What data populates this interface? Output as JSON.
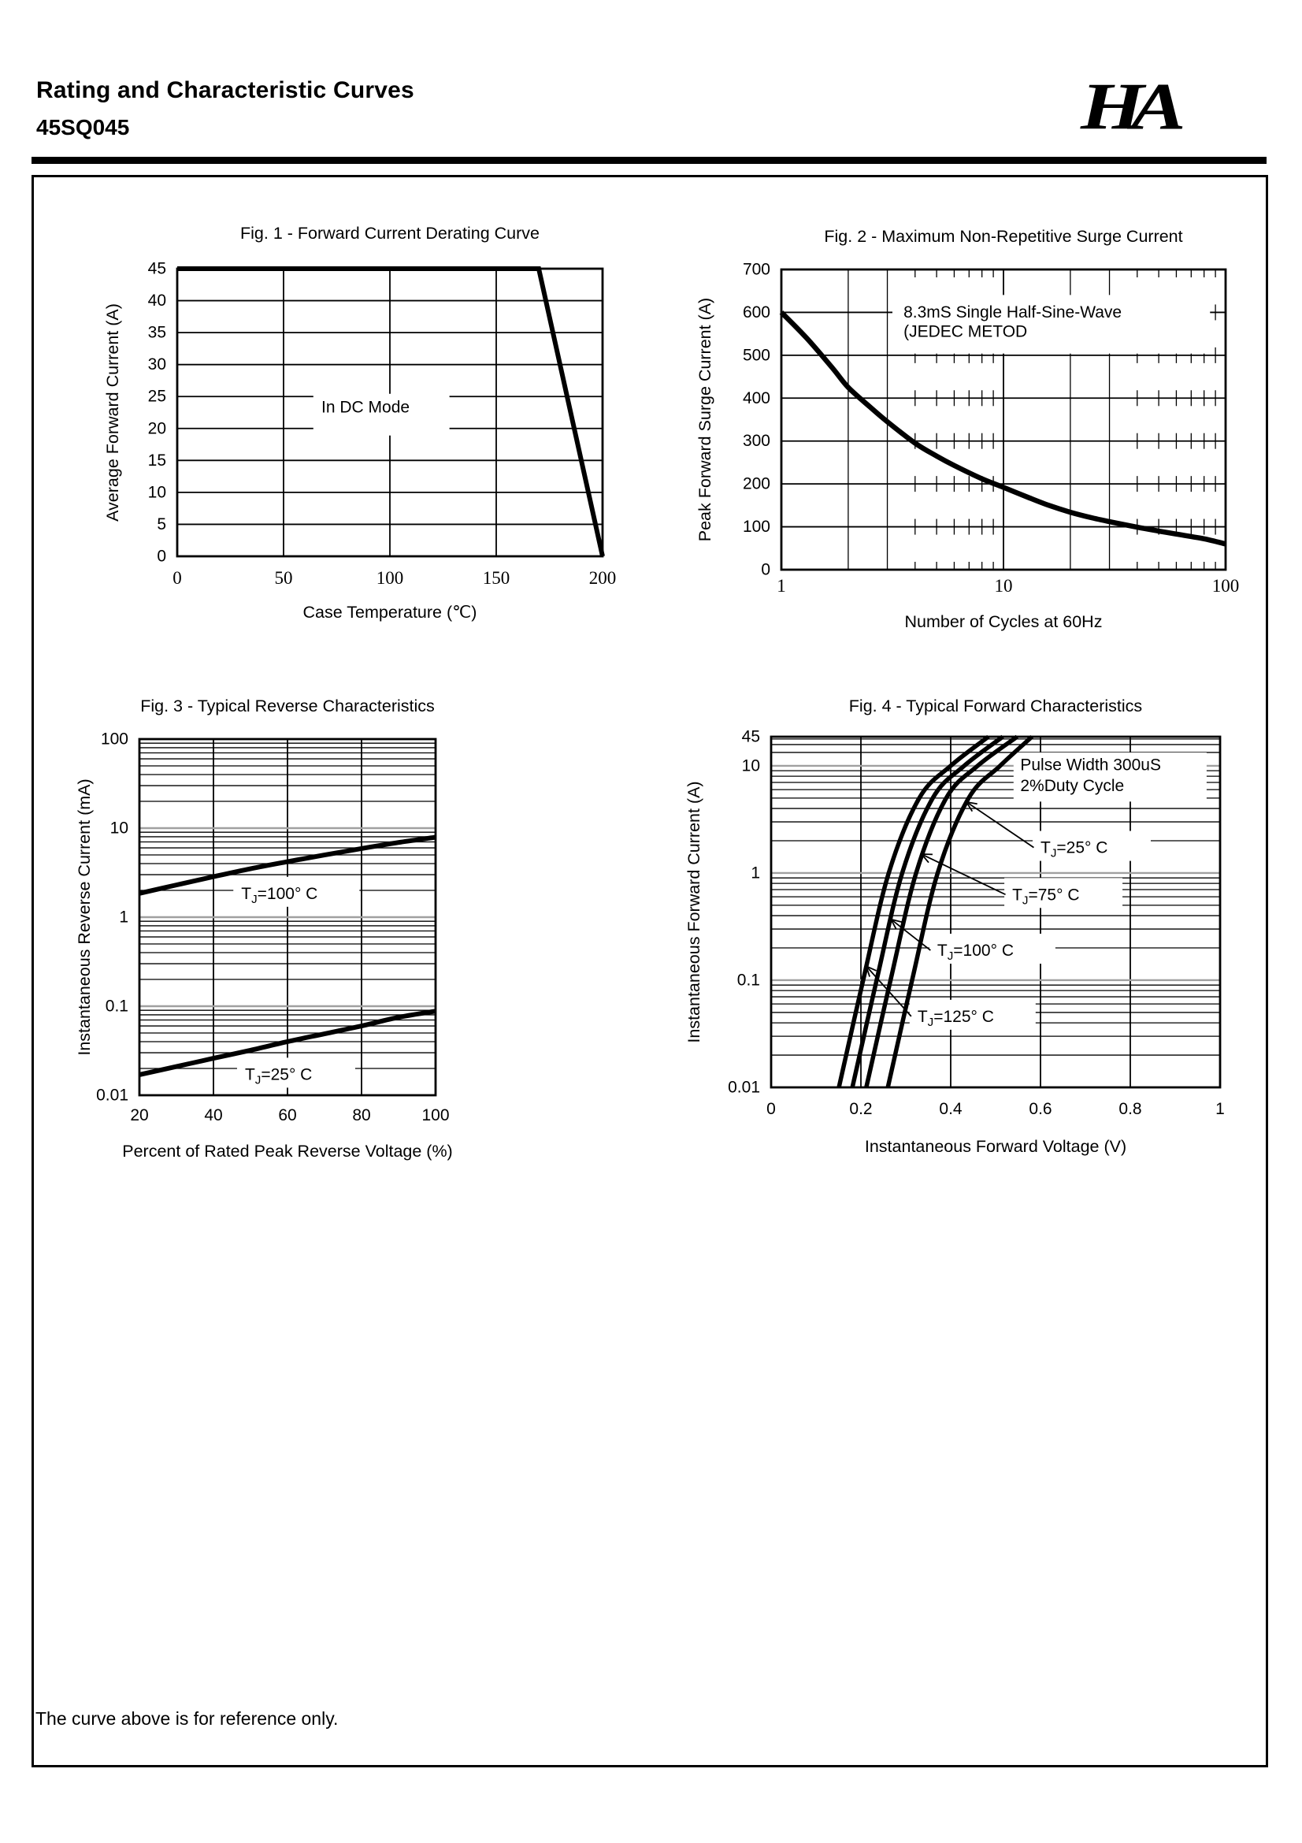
{
  "page": {
    "title": "Rating and Characteristic Curves",
    "part_number": "45SQ045",
    "logo_text": "HA",
    "footer_note": "The curve above is for reference only."
  },
  "colors": {
    "ink": "#000000",
    "grid_gray": "#a0a0a0",
    "paper": "#ffffff"
  },
  "chart_data": [
    {
      "id": "fig1",
      "type": "line",
      "title": "Fig. 1 - Forward Current Derating Curve",
      "xlabel": "Case Temperature (℃)",
      "ylabel": "Average Forward Current (A)",
      "x_scale": "linear",
      "y_scale": "linear",
      "xlim": [
        0,
        200
      ],
      "ylim": [
        0,
        45
      ],
      "x_ticks": [
        {
          "v": 0,
          "label": "0"
        },
        {
          "v": 50,
          "label": "50"
        },
        {
          "v": 100,
          "label": "100"
        },
        {
          "v": 150,
          "label": "150"
        },
        {
          "v": 200,
          "label": "200"
        }
      ],
      "y_ticks": [
        {
          "v": 0,
          "label": "0"
        },
        {
          "v": 5,
          "label": "5"
        },
        {
          "v": 10,
          "label": "10"
        },
        {
          "v": 15,
          "label": "15"
        },
        {
          "v": 20,
          "label": "20"
        },
        {
          "v": 25,
          "label": "25"
        },
        {
          "v": 30,
          "label": "30"
        },
        {
          "v": 35,
          "label": "35"
        },
        {
          "v": 40,
          "label": "40"
        },
        {
          "v": 45,
          "label": "45"
        }
      ],
      "grid": {
        "x_lines": [
          50,
          100,
          150
        ],
        "y_lines": [
          5,
          10,
          15,
          20,
          25,
          30,
          35,
          40
        ]
      },
      "series": [
        {
          "name": "derating-curve",
          "width": 6,
          "smooth": false,
          "points": [
            [
              0,
              45
            ],
            [
              170,
              45
            ],
            [
              200,
              0
            ]
          ]
        }
      ],
      "white_boxes": [
        {
          "fx0": 0.32,
          "fy0": 0.435,
          "fx1": 0.64,
          "fy1": 0.58
        }
      ],
      "notes": [
        {
          "lines": [
            "In DC Mode"
          ],
          "fx": 0.339,
          "fy_lines": [
            0.5
          ]
        }
      ]
    },
    {
      "id": "fig2",
      "type": "line",
      "title": "Fig. 2 - Maximum Non-Repetitive Surge Current",
      "xlabel": "Number of Cycles at 60Hz",
      "ylabel": "Peak Forward Surge Current (A)",
      "x_scale": "log",
      "y_scale": "linear",
      "xlim": [
        1,
        100
      ],
      "ylim": [
        0,
        700
      ],
      "x_ticks": [
        {
          "v": 1,
          "label": "1"
        },
        {
          "v": 10,
          "label": "10"
        },
        {
          "v": 100,
          "label": "100"
        }
      ],
      "y_ticks": [
        {
          "v": 0,
          "label": "0"
        },
        {
          "v": 100,
          "label": "100"
        },
        {
          "v": 200,
          "label": "200"
        },
        {
          "v": 300,
          "label": "300"
        },
        {
          "v": 400,
          "label": "400"
        },
        {
          "v": 500,
          "label": "500"
        },
        {
          "v": 600,
          "label": "600"
        },
        {
          "v": 700,
          "label": "700"
        }
      ],
      "grid": {
        "x_lines": [
          10
        ],
        "x_minor_lines": [
          2,
          3,
          20,
          30
        ],
        "x_stub_lines": [
          4,
          5,
          6,
          7,
          8,
          9,
          40,
          50,
          60,
          70,
          80,
          90
        ],
        "y_lines": [
          100,
          200,
          300,
          400,
          500,
          600
        ]
      },
      "series": [
        {
          "name": "surge-curve",
          "width": 6.5,
          "smooth": true,
          "points": [
            [
              1,
              600
            ],
            [
              1.3,
              540
            ],
            [
              1.7,
              470
            ],
            [
              2,
              425
            ],
            [
              2.5,
              380
            ],
            [
              3,
              345
            ],
            [
              4,
              295
            ],
            [
              5,
              265
            ],
            [
              6,
              243
            ],
            [
              8,
              212
            ],
            [
              10,
              192
            ],
            [
              13,
              168
            ],
            [
              16,
              150
            ],
            [
              20,
              134
            ],
            [
              25,
              121
            ],
            [
              30,
              112
            ],
            [
              40,
              99
            ],
            [
              50,
              90
            ],
            [
              60,
              83
            ],
            [
              80,
              72
            ],
            [
              100,
              60
            ]
          ]
        }
      ],
      "white_boxes": [
        {
          "fx0": 0.25,
          "fy0": 0.085,
          "fx1": 0.965,
          "fy1": 0.28
        }
      ],
      "notes": [
        {
          "lines": [
            "8.3mS Single Half-Sine-Wave",
            "(JEDEC METOD"
          ],
          "fx": 0.275,
          "fy_lines": [
            0.16,
            0.225
          ]
        }
      ]
    },
    {
      "id": "fig3",
      "type": "line",
      "title": "Fig. 3 - Typical Reverse Characteristics",
      "xlabel": "Percent of Rated Peak Reverse Voltage (%)",
      "ylabel": "Instantaneous Reverse Current  (mA)",
      "x_scale": "linear",
      "y_scale": "log",
      "xlim": [
        20,
        100
      ],
      "ylim": [
        0.01,
        100
      ],
      "x_ticks": [
        {
          "v": 20,
          "label": "20"
        },
        {
          "v": 40,
          "label": "40"
        },
        {
          "v": 60,
          "label": "60"
        },
        {
          "v": 80,
          "label": "80"
        },
        {
          "v": 100,
          "label": "100"
        }
      ],
      "y_ticks": [
        {
          "v": 100,
          "label": "100"
        },
        {
          "v": 10,
          "label": "10"
        },
        {
          "v": 1,
          "label": "1"
        },
        {
          "v": 0.1,
          "label": "0.1"
        },
        {
          "v": 0.01,
          "label": "0.01"
        }
      ],
      "grid": {
        "x_lines": [
          40,
          60,
          80
        ],
        "y_gray_lines": [
          0.1,
          1,
          10
        ],
        "y_minor_lines": [
          0.02,
          0.03,
          0.04,
          0.05,
          0.06,
          0.07,
          0.08,
          0.09,
          0.2,
          0.3,
          0.4,
          0.5,
          0.6,
          0.7,
          0.8,
          0.9,
          2,
          3,
          4,
          5,
          6,
          7,
          8,
          9,
          20,
          30,
          40,
          50,
          60,
          70,
          80,
          90
        ]
      },
      "series": [
        {
          "name": "tj-100c-curve",
          "width": 6,
          "smooth": true,
          "points": [
            [
              20,
              1.85
            ],
            [
              30,
              2.3
            ],
            [
              40,
              2.85
            ],
            [
              50,
              3.5
            ],
            [
              60,
              4.2
            ],
            [
              70,
              5.0
            ],
            [
              80,
              5.9
            ],
            [
              90,
              6.9
            ],
            [
              100,
              7.9
            ]
          ]
        },
        {
          "name": "tj-25c-curve",
          "width": 6,
          "smooth": true,
          "points": [
            [
              20,
              0.017
            ],
            [
              30,
              0.021
            ],
            [
              40,
              0.026
            ],
            [
              50,
              0.032
            ],
            [
              60,
              0.04
            ],
            [
              70,
              0.049
            ],
            [
              80,
              0.06
            ],
            [
              90,
              0.075
            ],
            [
              100,
              0.088
            ]
          ]
        }
      ],
      "white_boxes": [],
      "temp_labels": [
        {
          "pre": "T",
          "sub": "J",
          "post": "=100° C",
          "x": 47.5,
          "y": 1.85,
          "boxw": 160
        },
        {
          "pre": "T",
          "sub": "J",
          "post": "=25° C",
          "x": 48.5,
          "y": 0.0172,
          "boxw": 150
        }
      ]
    },
    {
      "id": "fig4",
      "type": "line",
      "title": "Fig. 4 - Typical Forward Characteristics",
      "xlabel": "Instantaneous Forward Voltage (V)",
      "ylabel": "Instantaneous Forward Current (A)",
      "x_scale": "linear",
      "y_scale": "log",
      "xlim": [
        0,
        1
      ],
      "ylim": [
        0.01,
        45
      ],
      "y_break": {
        "at": 10,
        "frac": 0.083
      },
      "x_ticks": [
        {
          "v": 0,
          "label": "0"
        },
        {
          "v": 0.2,
          "label": "0.2"
        },
        {
          "v": 0.4,
          "label": "0.4"
        },
        {
          "v": 0.6,
          "label": "0.6"
        },
        {
          "v": 0.8,
          "label": "0.8"
        },
        {
          "v": 1,
          "label": "1"
        }
      ],
      "y_ticks": [
        {
          "v": 45,
          "label": "45"
        },
        {
          "v": 10,
          "label": "10"
        },
        {
          "v": 1,
          "label": "1"
        },
        {
          "v": 0.1,
          "label": "0.1"
        },
        {
          "v": 0.01,
          "label": "0.01"
        }
      ],
      "grid": {
        "x_lines": [
          0.2,
          0.4,
          0.6,
          0.8
        ],
        "y_gray_lines": [
          0.1,
          1,
          10
        ],
        "y_minor_lines": [
          0.02,
          0.03,
          0.04,
          0.05,
          0.06,
          0.07,
          0.08,
          0.09,
          0.2,
          0.3,
          0.4,
          0.5,
          0.6,
          0.7,
          0.8,
          0.9,
          2,
          3,
          4,
          5,
          6,
          7,
          8,
          9,
          20,
          30,
          40
        ]
      },
      "series": [
        {
          "name": "tj-125c-curve",
          "width": 5.5,
          "smooth": true,
          "points": [
            [
              0.151,
              0.01
            ],
            [
              0.205,
              0.1
            ],
            [
              0.262,
              1
            ],
            [
              0.33,
              5
            ],
            [
              0.4,
              10
            ],
            [
              0.484,
              45
            ]
          ]
        },
        {
          "name": "tj-100c-curve",
          "width": 5.5,
          "smooth": true,
          "points": [
            [
              0.181,
              0.01
            ],
            [
              0.235,
              0.1
            ],
            [
              0.292,
              1
            ],
            [
              0.36,
              5
            ],
            [
              0.43,
              10
            ],
            [
              0.516,
              45
            ]
          ]
        },
        {
          "name": "tj-75c-curve",
          "width": 5.5,
          "smooth": true,
          "points": [
            [
              0.212,
              0.01
            ],
            [
              0.266,
              0.1
            ],
            [
              0.323,
              1
            ],
            [
              0.39,
              5
            ],
            [
              0.46,
              10
            ],
            [
              0.548,
              45
            ]
          ]
        },
        {
          "name": "tj-25c-curve",
          "width": 5.5,
          "smooth": true,
          "points": [
            [
              0.26,
              0.01
            ],
            [
              0.314,
              0.1
            ],
            [
              0.371,
              1
            ],
            [
              0.44,
              5
            ],
            [
              0.51,
              10
            ],
            [
              0.581,
              45
            ]
          ]
        }
      ],
      "white_boxes": [
        {
          "fx0": 0.54,
          "fy0": 0.045,
          "fx1": 0.97,
          "fy1": 0.185
        }
      ],
      "notes": [
        {
          "lines": [
            "Pulse Width 300uS",
            "2%Duty Cycle"
          ],
          "fx": 0.555,
          "fy_lines": [
            0.095,
            0.155
          ]
        }
      ],
      "temp_labels": [
        {
          "pre": "T",
          "sub": "J",
          "post": "=25° C",
          "x": 0.6,
          "y": 1.73,
          "boxw": 150
        },
        {
          "pre": "T",
          "sub": "J",
          "post": "=75° C",
          "x": 0.537,
          "y": 0.63,
          "boxw": 150
        },
        {
          "pre": "T",
          "sub": "J",
          "post": "=100° C",
          "x": 0.37,
          "y": 0.19,
          "boxw": 160
        },
        {
          "pre": "T",
          "sub": "J",
          "post": "=125° C",
          "x": 0.326,
          "y": 0.046,
          "boxw": 160
        }
      ],
      "pointers": [
        {
          "from": [
            0.585,
            1.73
          ],
          "to": [
            0.435,
            4.6
          ]
        },
        {
          "from": [
            0.522,
            0.63
          ],
          "to": [
            0.335,
            1.5
          ]
        },
        {
          "from": [
            0.355,
            0.19
          ],
          "to": [
            0.267,
            0.37
          ]
        },
        {
          "from": [
            0.312,
            0.046
          ],
          "to": [
            0.212,
            0.135
          ]
        }
      ]
    }
  ]
}
